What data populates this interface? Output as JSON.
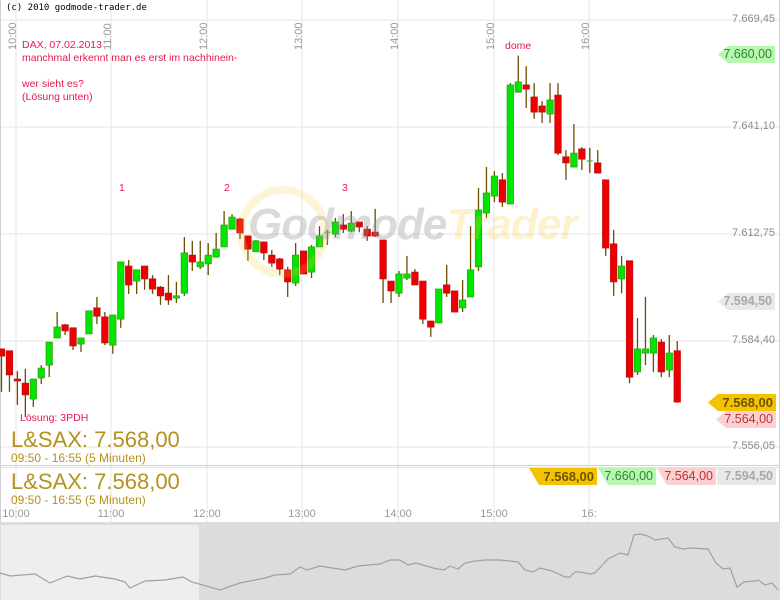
{
  "header": {
    "copyright": "(c) 2010 godmode-trader.de"
  },
  "watermark": {
    "part1": "Godmode",
    "part2": "Trader"
  },
  "annotations": {
    "title": "DAX, 07.02.2013",
    "line1": "manchmal erkennt man es erst im nachhinein-",
    "line2": "wer sieht es?",
    "line3": "(Lösung unten)",
    "marker1": "1",
    "marker2": "2",
    "marker3": "3",
    "dome": "dome",
    "solution": "Lösung: 3PDH"
  },
  "instrument": {
    "label": "L&SAX: 7.568,00",
    "range": "09:50 - 16:55 (5 Minuten)"
  },
  "y_axis": {
    "ticks": [
      "7.669,45",
      "7.641,10",
      "7.612,75",
      "7.584,40",
      "7.556,05"
    ]
  },
  "x_axis": {
    "ticks": [
      "10:00",
      "11:00",
      "12:00",
      "13:00",
      "14:00",
      "15:00",
      "16:00"
    ],
    "bottom_ticks": [
      "10:00",
      "11:00",
      "12:00",
      "13:00",
      "14:00",
      "15:00",
      "16:"
    ]
  },
  "price_tags": {
    "last": "7.568,00",
    "high": "7.660,00",
    "low": "7.564,00",
    "reference": "7.594,50"
  },
  "colors": {
    "up": "#00e600",
    "down": "#ee0000",
    "wick": "#6b4c00",
    "accent": "#b4921c",
    "annotation": "#e8174a"
  },
  "chart_data": {
    "type": "candlestick",
    "start": "09:50",
    "interval_minutes": 5,
    "ylim": [
      7556.05,
      7669.45
    ],
    "grid": true,
    "candles_ohlc": [
      [
        7582.1,
        7582.1,
        7570.7,
        7580.2
      ],
      [
        7581.6,
        7581.6,
        7570.7,
        7575.2
      ],
      [
        7574.1,
        7576.2,
        7567.2,
        7573.6
      ],
      [
        7573.0,
        7576.8,
        7564.0,
        7569.9
      ],
      [
        7568.8,
        7574.1,
        7566.7,
        7574.1
      ],
      [
        7574.4,
        7577.8,
        7572.8,
        7577.0
      ],
      [
        7577.8,
        7583.9,
        7574.6,
        7583.9
      ],
      [
        7585.0,
        7591.9,
        7585.0,
        7587.9
      ],
      [
        7588.5,
        7588.7,
        7585.8,
        7586.9
      ],
      [
        7587.7,
        7587.7,
        7581.8,
        7582.9
      ],
      [
        7583.4,
        7585.0,
        7581.3,
        7585.0
      ],
      [
        7586.1,
        7592.2,
        7586.1,
        7592.2
      ],
      [
        7593.0,
        7595.9,
        7588.7,
        7590.8
      ],
      [
        7590.6,
        7591.9,
        7583.1,
        7583.7
      ],
      [
        7583.1,
        7591.1,
        7580.8,
        7591.1
      ],
      [
        7590.0,
        7605.2,
        7587.7,
        7605.2
      ],
      [
        7604.1,
        7605.7,
        7596.7,
        7599.1
      ],
      [
        7600.1,
        7603.1,
        7596.7,
        7603.1
      ],
      [
        7604.1,
        7604.1,
        7597.8,
        7600.7
      ],
      [
        7600.7,
        7601.7,
        7596.7,
        7598.0
      ],
      [
        7598.5,
        7598.8,
        7593.8,
        7596.2
      ],
      [
        7596.9,
        7601.7,
        7593.8,
        7595.1
      ],
      [
        7595.6,
        7599.9,
        7594.3,
        7596.2
      ],
      [
        7596.9,
        7611.8,
        7596.2,
        7607.6
      ],
      [
        7607.0,
        7610.8,
        7602.8,
        7605.2
      ],
      [
        7603.9,
        7610.8,
        7603.3,
        7605.2
      ],
      [
        7604.7,
        7610.2,
        7601.7,
        7607.0
      ],
      [
        7606.5,
        7612.9,
        7606.3,
        7608.6
      ],
      [
        7609.2,
        7618.7,
        7609.2,
        7615.0
      ],
      [
        7613.9,
        7617.9,
        7613.9,
        7617.1
      ],
      [
        7616.6,
        7616.9,
        7611.3,
        7612.9
      ],
      [
        7612.1,
        7612.1,
        7605.5,
        7608.6
      ],
      [
        7607.9,
        7611.0,
        7607.9,
        7610.8
      ],
      [
        7610.5,
        7610.5,
        7605.7,
        7607.6
      ],
      [
        7607.0,
        7608.4,
        7603.9,
        7604.9
      ],
      [
        7606.0,
        7606.3,
        7601.7,
        7603.3
      ],
      [
        7603.1,
        7603.9,
        7595.9,
        7599.9
      ],
      [
        7599.6,
        7610.2,
        7598.8,
        7607.0
      ],
      [
        7608.1,
        7608.1,
        7602.0,
        7602.0
      ],
      [
        7602.5,
        7609.7,
        7600.9,
        7609.2
      ],
      [
        7609.2,
        7614.7,
        7609.2,
        7612.1
      ],
      [
        7613.1,
        7613.7,
        7609.7,
        7613.1
      ],
      [
        7612.6,
        7616.9,
        7611.8,
        7615.8
      ],
      [
        7615.0,
        7617.9,
        7612.9,
        7613.9
      ],
      [
        7613.4,
        7618.7,
        7613.1,
        7615.5
      ],
      [
        7615.8,
        7615.8,
        7613.1,
        7614.5
      ],
      [
        7613.9,
        7614.7,
        7610.8,
        7612.1
      ],
      [
        7613.1,
        7619.3,
        7611.8,
        7612.1
      ],
      [
        7611.0,
        7611.0,
        7594.3,
        7600.7
      ],
      [
        7600.1,
        7600.1,
        7594.3,
        7597.5
      ],
      [
        7596.9,
        7602.8,
        7595.9,
        7602.0
      ],
      [
        7600.9,
        7606.8,
        7600.4,
        7602.0
      ],
      [
        7602.5,
        7603.3,
        7599.1,
        7599.1
      ],
      [
        7600.1,
        7600.1,
        7588.7,
        7590.0
      ],
      [
        7589.5,
        7589.5,
        7585.3,
        7587.9
      ],
      [
        7589.0,
        7598.0,
        7589.0,
        7598.0
      ],
      [
        7599.1,
        7604.4,
        7595.9,
        7596.9
      ],
      [
        7597.5,
        7597.5,
        7591.9,
        7591.9
      ],
      [
        7593.0,
        7600.4,
        7591.9,
        7595.1
      ],
      [
        7595.9,
        7614.7,
        7595.9,
        7603.1
      ],
      [
        7603.9,
        7624.8,
        7602.8,
        7619.0
      ],
      [
        7618.2,
        7630.4,
        7616.9,
        7623.5
      ],
      [
        7622.7,
        7629.3,
        7621.1,
        7628.0
      ],
      [
        7627.0,
        7628.8,
        7619.8,
        7621.1
      ],
      [
        7620.6,
        7652.7,
        7620.6,
        7652.2
      ],
      [
        7650.3,
        7660.0,
        7650.1,
        7653.0
      ],
      [
        7652.2,
        7657.2,
        7646.1,
        7651.1
      ],
      [
        7649.0,
        7652.7,
        7643.2,
        7645.0
      ],
      [
        7646.6,
        7647.9,
        7642.1,
        7645.0
      ],
      [
        7644.5,
        7652.7,
        7642.1,
        7648.2
      ],
      [
        7649.5,
        7652.7,
        7633.6,
        7634.1
      ],
      [
        7633.1,
        7634.9,
        7627.0,
        7631.5
      ],
      [
        7630.4,
        7641.8,
        7630.4,
        7634.1
      ],
      [
        7635.2,
        7635.7,
        7629.6,
        7632.5
      ],
      [
        7632.0,
        7635.5,
        7628.8,
        7632.0
      ],
      [
        7631.5,
        7634.9,
        7628.8,
        7628.8
      ],
      [
        7627.0,
        7627.0,
        7606.8,
        7608.9
      ],
      [
        7610.0,
        7613.7,
        7596.2,
        7599.9
      ],
      [
        7600.7,
        7606.8,
        7596.9,
        7604.1
      ],
      [
        7605.5,
        7605.5,
        7573.0,
        7574.6
      ],
      [
        7576.0,
        7590.3,
        7575.2,
        7582.1
      ],
      [
        7581.0,
        7595.9,
        7577.8,
        7582.1
      ],
      [
        7581.0,
        7585.8,
        7576.0,
        7585.0
      ],
      [
        7583.9,
        7584.7,
        7574.6,
        7576.0
      ],
      [
        7576.5,
        7585.8,
        7574.6,
        7581.0
      ],
      [
        7581.6,
        7584.2,
        7567.8,
        7568.0
      ]
    ]
  }
}
